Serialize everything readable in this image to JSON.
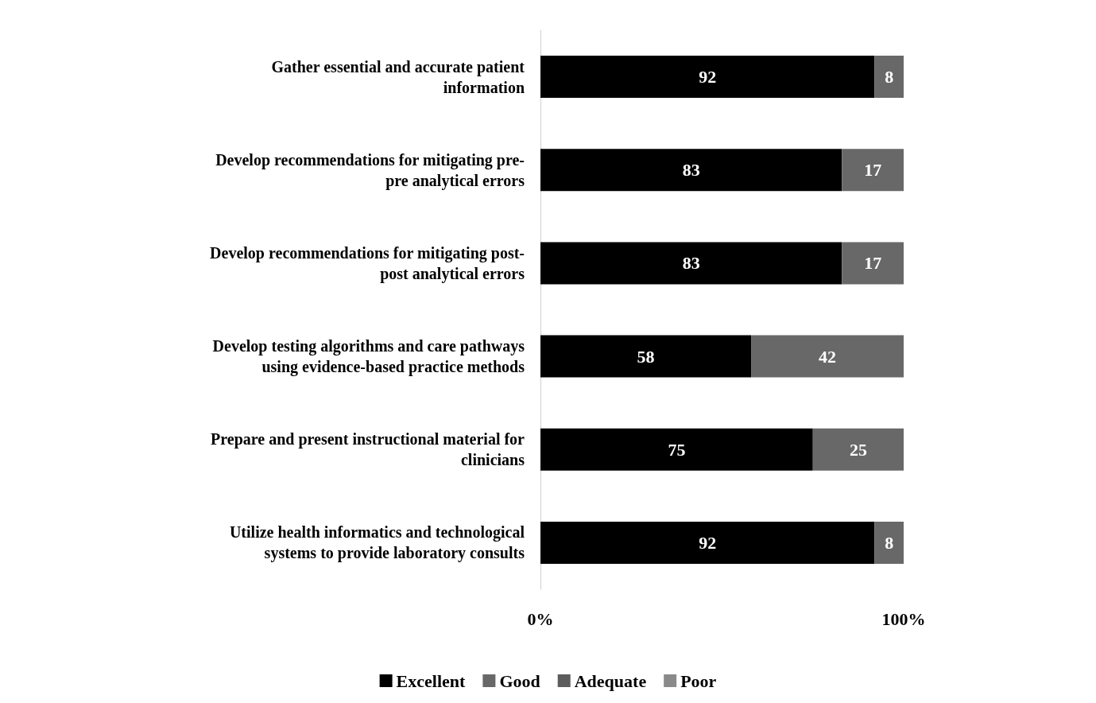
{
  "chart_data": {
    "type": "bar",
    "orientation": "horizontal",
    "stacked": true,
    "categories": [
      "Gather essential and accurate patient\ninformation",
      "Develop recommendations for mitigating pre-\npre analytical errors",
      "Develop recommendations for mitigating post-\npost analytical errors",
      "Develop testing algorithms and care pathways\nusing evidence-based practice methods",
      "Prepare and present instructional material for\nclinicians",
      "Utilize health informatics and technological\nsystems to provide laboratory consults"
    ],
    "series": [
      {
        "name": "Excellent",
        "color": "#000000",
        "values": [
          92,
          83,
          83,
          58,
          75,
          92
        ],
        "value_labels": [
          "92",
          "83",
          "83",
          "58",
          "75",
          "92"
        ]
      },
      {
        "name": "Good",
        "color": "#686868",
        "values": [
          8,
          17,
          17,
          42,
          25,
          8
        ],
        "value_labels": [
          "8",
          "17",
          "17",
          "42",
          "25",
          "8"
        ]
      },
      {
        "name": "Adequate",
        "color": "#5c5c5c",
        "values": [
          0,
          0,
          0,
          0,
          0,
          0
        ],
        "value_labels": [
          null,
          null,
          null,
          null,
          null,
          null
        ]
      },
      {
        "name": "Poor",
        "color": "#8a8a8a",
        "values": [
          0,
          0,
          0,
          0,
          0,
          0
        ],
        "value_labels": [
          null,
          null,
          null,
          null,
          null,
          null
        ]
      }
    ],
    "xlim": [
      0,
      100
    ],
    "xticks": [
      {
        "value": 0,
        "label": "0%"
      },
      {
        "value": 100,
        "label": "100%"
      }
    ],
    "grid": false,
    "legend": "bottom"
  }
}
